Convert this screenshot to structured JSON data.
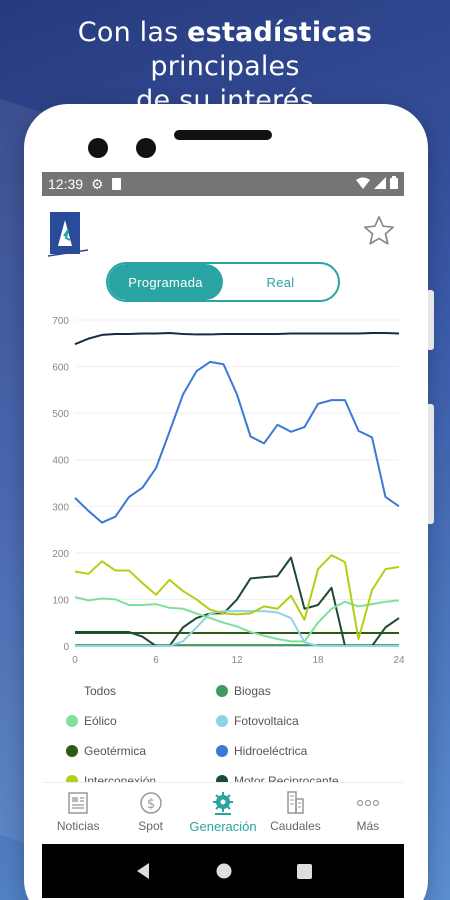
{
  "headline": {
    "prefix": "Con las ",
    "bold": "estadísticas",
    "mid": " principales",
    "line2_prefix": "de su ",
    "underlined": "interés"
  },
  "statusbar": {
    "time": "12:39"
  },
  "toggle": {
    "active_label": "Programada",
    "inactive_label": "Real"
  },
  "colors": {
    "accent": "#2aa3a3",
    "todos": "#1a2a45",
    "biogas": "#3f9a5f",
    "eolico": "#7ee09a",
    "fotovoltaica": "#8fd3e6",
    "geotermica": "#2d5a10",
    "hidroelectrica": "#3a79d6",
    "interconexion": "#b4cf10",
    "motor": "#1d4a33"
  },
  "chart_data": {
    "type": "line",
    "xlim": [
      0,
      24
    ],
    "ylim": [
      0,
      700
    ],
    "x_ticks": [
      "0",
      "6",
      "12",
      "18",
      "24"
    ],
    "y_ticks": [
      "0",
      "100",
      "200",
      "300",
      "400",
      "500",
      "600",
      "700"
    ],
    "x": [
      0,
      1,
      2,
      3,
      4,
      5,
      6,
      7,
      8,
      9,
      10,
      11,
      12,
      13,
      14,
      15,
      16,
      17,
      18,
      19,
      20,
      21,
      22,
      23,
      24
    ],
    "series": [
      {
        "name": "Todos",
        "color": "#1a2a45",
        "values": [
          648,
          660,
          668,
          670,
          670,
          671,
          671,
          672,
          670,
          669,
          669,
          670,
          670,
          670,
          670,
          670,
          671,
          671,
          671,
          671,
          671,
          671,
          672,
          672,
          671
        ]
      },
      {
        "name": "Hidroeléctrica",
        "color": "#3a79d6",
        "values": [
          318,
          290,
          265,
          278,
          320,
          340,
          382,
          460,
          540,
          590,
          610,
          605,
          540,
          450,
          435,
          475,
          460,
          470,
          520,
          528,
          528,
          462,
          448,
          320,
          300
        ]
      },
      {
        "name": "Interconexión",
        "color": "#b4cf10",
        "values": [
          160,
          155,
          182,
          162,
          162,
          135,
          110,
          142,
          118,
          100,
          78,
          70,
          68,
          70,
          85,
          80,
          108,
          56,
          165,
          195,
          180,
          15,
          120,
          165,
          170
        ]
      },
      {
        "name": "Eólico",
        "color": "#7ee09a",
        "values": [
          105,
          98,
          102,
          100,
          88,
          88,
          90,
          82,
          80,
          70,
          60,
          50,
          42,
          30,
          22,
          15,
          10,
          10,
          50,
          80,
          95,
          85,
          90,
          95,
          98
        ]
      },
      {
        "name": "Fotovoltaica",
        "color": "#8fd3e6",
        "values": [
          0,
          0,
          0,
          0,
          0,
          0,
          0,
          0,
          10,
          40,
          70,
          75,
          75,
          75,
          75,
          72,
          60,
          8,
          0,
          0,
          0,
          0,
          0,
          0,
          0
        ]
      },
      {
        "name": "Motor Reciprocante",
        "color": "#1d4a33",
        "values": [
          30,
          30,
          30,
          30,
          30,
          20,
          0,
          0,
          40,
          60,
          70,
          70,
          100,
          145,
          148,
          150,
          190,
          80,
          88,
          125,
          0,
          0,
          0,
          40,
          60
        ]
      },
      {
        "name": "Geotérmica",
        "color": "#2d5a10",
        "values": [
          28,
          28,
          28,
          28,
          28,
          28,
          28,
          28,
          28,
          28,
          28,
          28,
          28,
          28,
          28,
          28,
          28,
          28,
          28,
          28,
          28,
          28,
          28,
          28,
          28
        ]
      },
      {
        "name": "Biogas",
        "color": "#3f9a5f",
        "values": [
          2,
          2,
          2,
          2,
          2,
          2,
          2,
          2,
          2,
          2,
          2,
          2,
          2,
          2,
          2,
          2,
          2,
          2,
          2,
          2,
          2,
          2,
          2,
          2,
          2
        ]
      }
    ]
  },
  "legend": [
    {
      "label": "Todos",
      "color": ""
    },
    {
      "label": "Biogas",
      "color": "#3f9a5f"
    },
    {
      "label": "Eólico",
      "color": "#7ee09a"
    },
    {
      "label": "Fotovoltaica",
      "color": "#8fd3e6"
    },
    {
      "label": "Geotérmica",
      "color": "#2d5a10"
    },
    {
      "label": "Hidroeléctrica",
      "color": "#3a79d6"
    },
    {
      "label": "Interconexión",
      "color": "#b4cf10"
    },
    {
      "label": "Motor Reciprocante",
      "color": "#1d4a33"
    }
  ],
  "nav": [
    {
      "label": "Noticias",
      "icon": "newspaper-icon"
    },
    {
      "label": "Spot",
      "icon": "dollar-icon"
    },
    {
      "label": "Generación",
      "icon": "gear-icon"
    },
    {
      "label": "Caudales",
      "icon": "building-icon"
    },
    {
      "label": "Más",
      "icon": "more-icon"
    }
  ]
}
